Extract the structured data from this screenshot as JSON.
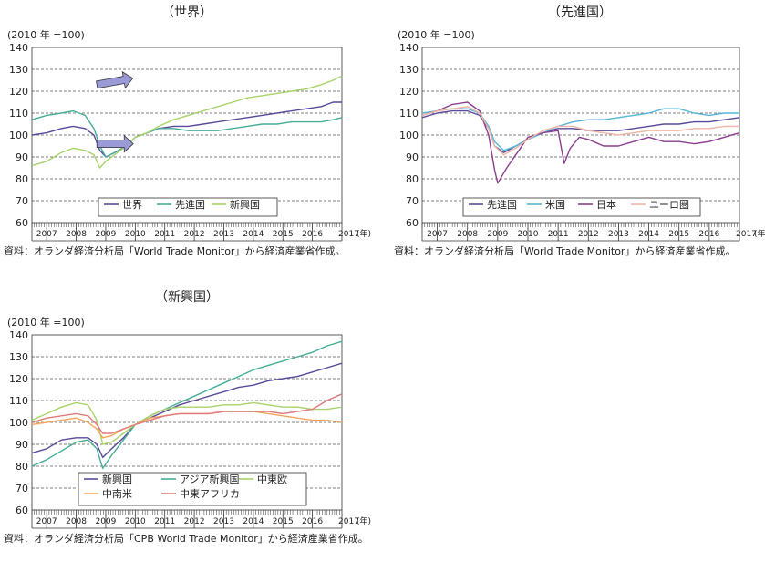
{
  "chart_data": [
    {
      "type": "line",
      "title": "（世界）",
      "ylabel": "(2010 年 =100)",
      "ylim": [
        60,
        140
      ],
      "yticks": [
        60,
        70,
        80,
        90,
        100,
        110,
        120,
        130,
        140
      ],
      "xlim": [
        2006.5,
        2017.0
      ],
      "years": [
        "2007",
        "2008",
        "2009",
        "2010",
        "2011",
        "2012",
        "2013",
        "2014",
        "2015",
        "2016"
      ],
      "x_end_label": "2017",
      "x_unit": "(年)",
      "grid": true,
      "legend_position": "lower-center",
      "source": "資料：オランダ経済分析局「World Trade Monitor」から経済産業省作成。",
      "series": [
        {
          "name": "世界",
          "color": "#5a4a9a",
          "x": [
            2006.5,
            2007.0,
            2007.5,
            2007.9,
            2008.3,
            2008.6,
            2008.8,
            2009.0,
            2009.3,
            2009.7,
            2010.0,
            2010.4,
            2010.8,
            2011.3,
            2011.8,
            2012.3,
            2012.8,
            2013.3,
            2013.8,
            2014.3,
            2014.8,
            2015.3,
            2015.8,
            2016.3,
            2016.7,
            2017.0
          ],
          "y": [
            100,
            101,
            103,
            104,
            103,
            100,
            93,
            90,
            92,
            95,
            99,
            101,
            103,
            104,
            104,
            105,
            106,
            107,
            108,
            109,
            110,
            111,
            112,
            113,
            115,
            115
          ]
        },
        {
          "name": "先進国",
          "color": "#45ad98",
          "x": [
            2006.5,
            2007.0,
            2007.5,
            2007.9,
            2008.3,
            2008.6,
            2008.8,
            2009.0,
            2009.3,
            2009.7,
            2010.0,
            2010.4,
            2010.8,
            2011.3,
            2011.8,
            2012.3,
            2012.8,
            2013.3,
            2013.8,
            2014.3,
            2014.8,
            2015.3,
            2015.8,
            2016.3,
            2016.7,
            2017.0
          ],
          "y": [
            107,
            109,
            110,
            111,
            109,
            103,
            95,
            90,
            92,
            95,
            99,
            101,
            103,
            103,
            102,
            102,
            102,
            103,
            104,
            105,
            105,
            106,
            106,
            106,
            107,
            108
          ]
        },
        {
          "name": "新興国",
          "color": "#a8d36a",
          "x": [
            2006.5,
            2007.0,
            2007.5,
            2007.9,
            2008.3,
            2008.6,
            2008.8,
            2009.0,
            2009.3,
            2009.7,
            2010.0,
            2010.4,
            2010.8,
            2011.3,
            2011.8,
            2012.3,
            2012.8,
            2013.3,
            2013.8,
            2014.3,
            2014.8,
            2015.3,
            2015.8,
            2016.3,
            2016.7,
            2017.0
          ],
          "y": [
            86,
            88,
            92,
            94,
            93,
            91,
            85,
            88,
            91,
            95,
            99,
            101,
            104,
            107,
            109,
            111,
            113,
            115,
            117,
            118,
            119,
            120,
            121,
            123,
            125,
            127
          ]
        }
      ],
      "annotations": [
        "up-arrow",
        "right-arrow"
      ]
    },
    {
      "type": "line",
      "title": "（先進国）",
      "ylabel": "(2010 年 =100)",
      "ylim": [
        60,
        140
      ],
      "yticks": [
        60,
        70,
        80,
        90,
        100,
        110,
        120,
        130,
        140
      ],
      "xlim": [
        2006.5,
        2017.0
      ],
      "years": [
        "2007",
        "2008",
        "2009",
        "2010",
        "2011",
        "2012",
        "2013",
        "2014",
        "2015",
        "2016"
      ],
      "x_end_label": "2017",
      "x_unit": "(年)",
      "grid": true,
      "legend_position": "lower-center",
      "source": "資料：オランダ経済分析局「World Trade Monitor」から経済産業省作成。",
      "series": [
        {
          "name": "先進国",
          "color": "#5a4a9a",
          "x": [
            2006.5,
            2007.0,
            2007.5,
            2008.0,
            2008.4,
            2008.7,
            2008.9,
            2009.2,
            2009.6,
            2010.0,
            2010.5,
            2011.0,
            2011.5,
            2012.0,
            2012.5,
            2013.0,
            2013.5,
            2014.0,
            2014.5,
            2015.0,
            2015.5,
            2016.0,
            2016.5,
            2017.0
          ],
          "y": [
            108,
            110,
            111,
            111,
            109,
            103,
            95,
            92,
            95,
            98,
            101,
            103,
            103,
            102,
            102,
            102,
            103,
            104,
            105,
            105,
            106,
            106,
            107,
            108
          ]
        },
        {
          "name": "米国",
          "color": "#57b6d8",
          "x": [
            2006.5,
            2007.0,
            2007.5,
            2008.0,
            2008.4,
            2008.7,
            2008.9,
            2009.2,
            2009.6,
            2010.0,
            2010.5,
            2011.0,
            2011.5,
            2012.0,
            2012.5,
            2013.0,
            2013.5,
            2014.0,
            2014.5,
            2015.0,
            2015.5,
            2016.0,
            2016.5,
            2017.0
          ],
          "y": [
            110,
            111,
            112,
            112,
            110,
            104,
            97,
            93,
            95,
            98,
            101,
            104,
            106,
            107,
            107,
            108,
            109,
            110,
            112,
            112,
            110,
            109,
            110,
            110
          ]
        },
        {
          "name": "日本",
          "color": "#8a3f8f",
          "x": [
            2006.5,
            2007.0,
            2007.5,
            2008.0,
            2008.4,
            2008.7,
            2008.9,
            2009.0,
            2009.3,
            2009.7,
            2010.0,
            2010.5,
            2011.0,
            2011.2,
            2011.4,
            2011.7,
            2012.0,
            2012.5,
            2013.0,
            2013.5,
            2014.0,
            2014.5,
            2015.0,
            2015.5,
            2016.0,
            2016.5,
            2017.0
          ],
          "y": [
            109,
            111,
            114,
            115,
            111,
            100,
            84,
            78,
            85,
            93,
            99,
            101,
            102,
            87,
            94,
            99,
            98,
            95,
            95,
            97,
            99,
            97,
            97,
            96,
            97,
            99,
            101
          ]
        },
        {
          "name": "ユーロ圏",
          "color": "#f0b5a2",
          "x": [
            2006.5,
            2007.0,
            2007.5,
            2008.0,
            2008.4,
            2008.7,
            2008.9,
            2009.2,
            2009.6,
            2010.0,
            2010.5,
            2011.0,
            2011.5,
            2012.0,
            2012.5,
            2013.0,
            2013.5,
            2014.0,
            2014.5,
            2015.0,
            2015.5,
            2016.0,
            2016.5,
            2017.0
          ],
          "y": [
            109,
            111,
            112,
            113,
            110,
            103,
            95,
            91,
            94,
            98,
            102,
            104,
            104,
            102,
            101,
            100,
            101,
            102,
            102,
            102,
            103,
            103,
            104,
            104
          ]
        }
      ]
    },
    {
      "type": "line",
      "title": "（新興国）",
      "ylabel": "(2010 年 =100)",
      "ylim": [
        60,
        140
      ],
      "yticks": [
        60,
        70,
        80,
        90,
        100,
        110,
        120,
        130,
        140
      ],
      "xlim": [
        2006.5,
        2017.0
      ],
      "years": [
        "2007",
        "2008",
        "2009",
        "2010",
        "2011",
        "2012",
        "2013",
        "2014",
        "2015",
        "2016"
      ],
      "x_end_label": "2017",
      "x_unit": "(年)",
      "grid": true,
      "legend_position": "lower-center",
      "source": "資料：オランダ経済分析局「CPB World Trade Monitor」から経済産業省作成。",
      "series": [
        {
          "name": "新興国",
          "color": "#5a4a9a",
          "x": [
            2006.5,
            2007.0,
            2007.5,
            2008.0,
            2008.4,
            2008.7,
            2008.9,
            2009.2,
            2009.6,
            2010.0,
            2010.5,
            2011.0,
            2011.5,
            2012.0,
            2012.5,
            2013.0,
            2013.5,
            2014.0,
            2014.5,
            2015.0,
            2015.5,
            2016.0,
            2016.5,
            2017.0
          ],
          "y": [
            86,
            88,
            92,
            93,
            93,
            90,
            84,
            88,
            93,
            99,
            102,
            105,
            108,
            110,
            112,
            114,
            116,
            117,
            119,
            120,
            121,
            123,
            125,
            127
          ]
        },
        {
          "name": "アジア新興国",
          "color": "#45ad98",
          "x": [
            2006.5,
            2007.0,
            2007.5,
            2008.0,
            2008.4,
            2008.7,
            2008.9,
            2009.2,
            2009.6,
            2010.0,
            2010.5,
            2011.0,
            2011.5,
            2012.0,
            2012.5,
            2013.0,
            2013.5,
            2014.0,
            2014.5,
            2015.0,
            2015.5,
            2016.0,
            2016.5,
            2017.0
          ],
          "y": [
            80,
            83,
            87,
            91,
            92,
            88,
            79,
            85,
            92,
            99,
            103,
            106,
            109,
            112,
            115,
            118,
            121,
            124,
            126,
            128,
            130,
            132,
            135,
            137
          ]
        },
        {
          "name": "中東欧",
          "color": "#a8d36a",
          "x": [
            2006.5,
            2007.0,
            2007.5,
            2008.0,
            2008.4,
            2008.7,
            2008.9,
            2009.2,
            2009.6,
            2010.0,
            2010.5,
            2011.0,
            2011.5,
            2012.0,
            2012.5,
            2013.0,
            2013.5,
            2014.0,
            2014.5,
            2015.0,
            2015.5,
            2016.0,
            2016.5,
            2017.0
          ],
          "y": [
            101,
            104,
            107,
            109,
            108,
            101,
            90,
            91,
            95,
            99,
            103,
            106,
            107,
            107,
            107,
            108,
            108,
            109,
            108,
            107,
            107,
            106,
            106,
            107
          ]
        },
        {
          "name": "中南米",
          "color": "#f2a65a",
          "x": [
            2006.5,
            2007.0,
            2007.5,
            2008.0,
            2008.4,
            2008.7,
            2008.9,
            2009.2,
            2009.6,
            2010.0,
            2010.5,
            2011.0,
            2011.5,
            2012.0,
            2012.5,
            2013.0,
            2013.5,
            2014.0,
            2014.5,
            2015.0,
            2015.5,
            2016.0,
            2016.5,
            2017.0
          ],
          "y": [
            99,
            100,
            101,
            102,
            100,
            97,
            93,
            94,
            97,
            99,
            102,
            103,
            104,
            104,
            104,
            105,
            105,
            105,
            104,
            103,
            102,
            101,
            101,
            100
          ]
        },
        {
          "name": "中東アフリカ",
          "color": "#e07a7a",
          "x": [
            2006.5,
            2007.0,
            2007.5,
            2008.0,
            2008.4,
            2008.7,
            2008.9,
            2009.2,
            2009.6,
            2010.0,
            2010.5,
            2011.0,
            2011.5,
            2012.0,
            2012.5,
            2013.0,
            2013.5,
            2014.0,
            2014.5,
            2015.0,
            2015.5,
            2016.0,
            2016.5,
            2017.0
          ],
          "y": [
            100,
            102,
            103,
            104,
            103,
            99,
            95,
            95,
            97,
            99,
            101,
            103,
            104,
            104,
            104,
            105,
            105,
            105,
            105,
            104,
            105,
            106,
            110,
            113
          ]
        }
      ]
    }
  ]
}
